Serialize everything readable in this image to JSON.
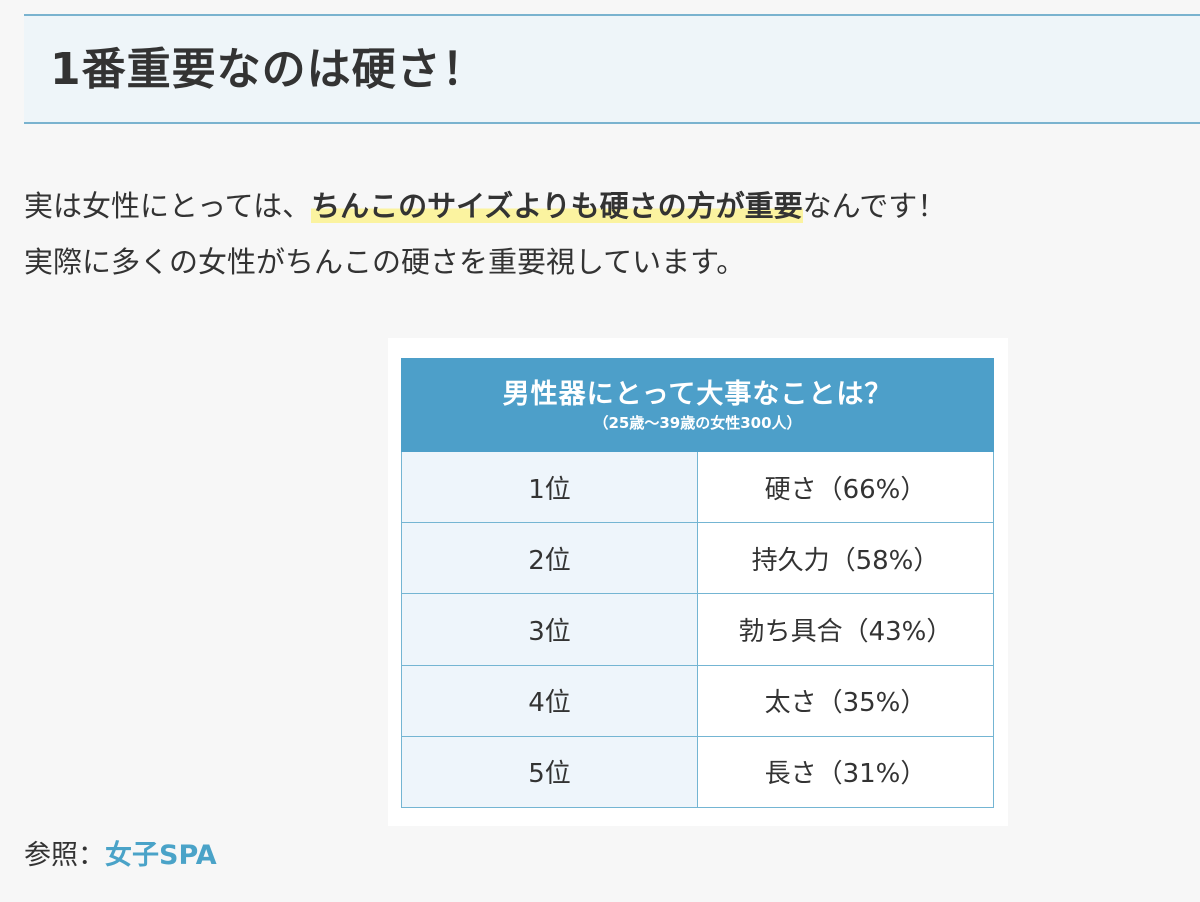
{
  "heading": {
    "title": "1番重要なのは硬さ！"
  },
  "paragraphs": {
    "line1_before": "実は女性にとっては、",
    "line1_highlight": "ちんこのサイズよりも硬さの方が重要",
    "line1_after": "なんです！",
    "line2": "実際に多くの女性がちんこの硬さを重要視しています。"
  },
  "table": {
    "title": "男性器にとって大事なことは？",
    "subtitle": "（25歳〜39歳の女性300人）",
    "rows": [
      {
        "rank": "1位",
        "item": "硬さ（66%）"
      },
      {
        "rank": "2位",
        "item": "持久力（58%）"
      },
      {
        "rank": "3位",
        "item": "勃ち具合（43%）"
      },
      {
        "rank": "4位",
        "item": "太さ（35%）"
      },
      {
        "rank": "5位",
        "item": "長さ（31%）"
      }
    ]
  },
  "source": {
    "label": "参照：",
    "link_text": "女子SPA"
  },
  "colors": {
    "accent": "#4d9fc9",
    "link": "#4aa3c8",
    "highlight": "#fbf3a0"
  }
}
